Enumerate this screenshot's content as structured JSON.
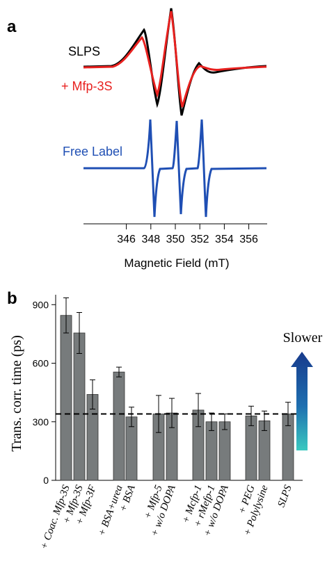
{
  "chart_data": [
    {
      "panel": "a",
      "type": "line",
      "xlabel": "Magnetic Field (mT)",
      "x_ticks": [
        346,
        348,
        350,
        352,
        354,
        356
      ],
      "xlim": [
        342.5,
        357.5
      ],
      "series_labels": [
        {
          "name": "SLPS",
          "color": "#000000"
        },
        {
          "name": "+ Mfp-3S",
          "color": "#e8211f"
        },
        {
          "name": "Free Label",
          "color": "#1f4fb4"
        }
      ]
    },
    {
      "panel": "b",
      "type": "bar",
      "ylabel": "Trans. corr. time (ps)",
      "ylim": [
        0,
        950
      ],
      "y_ticks": [
        0,
        300,
        600,
        900
      ],
      "reference_line": 340,
      "arrow_label": "Slower",
      "categories": [
        "+ Coac. Mfp-3S",
        "+ Mfp-3S",
        "+ Mfp-3F",
        "+ BSA+urea",
        "+ BSA",
        "+ Mfp-5",
        "+ w/o DOPA",
        "+ Mcfp-1",
        "+ rMefp-1",
        "+ w/o DOPA",
        "+ PEG",
        "+ Polylysine",
        "SLPS"
      ],
      "values": [
        845,
        755,
        440,
        555,
        325,
        340,
        345,
        360,
        300,
        300,
        330,
        305,
        340
      ],
      "errors": [
        90,
        105,
        75,
        25,
        50,
        95,
        75,
        85,
        45,
        40,
        50,
        50,
        60
      ],
      "bar_color": "#777b7c"
    }
  ]
}
